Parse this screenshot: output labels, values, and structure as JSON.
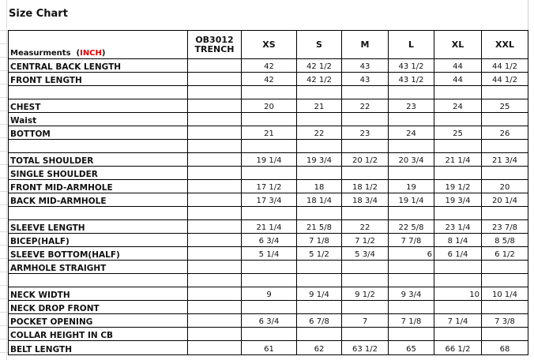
{
  "title": "Size Chart",
  "header": {
    "measurements_label": "Measurments",
    "unit_open": "(",
    "unit": "INCH",
    "unit_close": ")",
    "style_code": "OB3012",
    "style_name": "TRENCH",
    "sizes": [
      "XS",
      "S",
      "M",
      "L",
      "XL",
      "XXL"
    ]
  },
  "rows": [
    {
      "label": "CENTRAL BACK LENGTH",
      "values": [
        "42",
        "42 1/2",
        "43",
        "43 1/2",
        "44",
        "44 1/2"
      ]
    },
    {
      "label": "FRONT LENGTH",
      "values": [
        "42",
        "42 1/2",
        "43",
        "43 1/2",
        "44",
        "44 1/2"
      ]
    },
    {
      "label": "",
      "values": [
        "",
        "",
        "",
        "",
        "",
        ""
      ]
    },
    {
      "label": "CHEST",
      "values": [
        "20",
        "21",
        "22",
        "23",
        "24",
        "25"
      ]
    },
    {
      "label": "Waist",
      "values": [
        "",
        "",
        "",
        "",
        "",
        ""
      ]
    },
    {
      "label": "BOTTOM",
      "values": [
        "21",
        "22",
        "23",
        "24",
        "25",
        "26"
      ]
    },
    {
      "label": "",
      "values": [
        "",
        "",
        "",
        "",
        "",
        ""
      ]
    },
    {
      "label": "TOTAL SHOULDER",
      "values": [
        "19 1/4",
        "19 3/4",
        "20 1/2",
        "20 3/4",
        "21 1/4",
        "21 3/4"
      ]
    },
    {
      "label": "SINGLE SHOULDER",
      "values": [
        "",
        "",
        "",
        "",
        "",
        ""
      ]
    },
    {
      "label": "FRONT MID-ARMHOLE",
      "values": [
        "17 1/2",
        "18",
        "18 1/2",
        "19",
        "19 1/2",
        "20"
      ]
    },
    {
      "label": "BACK MID-ARMHOLE",
      "values": [
        "17 3/4",
        "18 1/4",
        "18 3/4",
        "19 1/4",
        "19 3/4",
        "20 1/4"
      ]
    },
    {
      "label": "",
      "values": [
        "",
        "",
        "",
        "",
        "",
        ""
      ]
    },
    {
      "label": "SLEEVE LENGTH",
      "values": [
        "21 1/4",
        "21 5/8",
        "22",
        "22 5/8",
        "23 1/4",
        "23 7/8"
      ]
    },
    {
      "label": "BICEP(HALF)",
      "values": [
        "6 3/4",
        "7 1/8",
        "7 1/2",
        "7 7/8",
        "8 1/4",
        "8 5/8"
      ]
    },
    {
      "label": "SLEEVE BOTTOM(HALF)",
      "values": [
        "5 1/4",
        "5 1/2",
        "5 3/4",
        "6",
        "6 1/4",
        "6 1/2"
      ]
    },
    {
      "label": "ARMHOLE STRAIGHT",
      "values": [
        "",
        "",
        "",
        "",
        "",
        ""
      ]
    },
    {
      "label": "",
      "values": [
        "",
        "",
        "",
        "",
        "",
        ""
      ]
    },
    {
      "label": "NECK WIDTH",
      "values": [
        "9",
        "9 1/4",
        "9 1/2",
        "9 3/4",
        "10",
        "10 1/4"
      ]
    },
    {
      "label": "NECK DROP FRONT",
      "values": [
        "",
        "",
        "",
        "",
        "",
        ""
      ]
    },
    {
      "label": "POCKET OPENING",
      "values": [
        "6 3/4",
        "6 7/8",
        "7",
        "7 1/8",
        "7 1/4",
        "7 3/8"
      ]
    },
    {
      "label": "COLLAR HEIGHT IN CB",
      "values": [
        "",
        "",
        "",
        "",
        "",
        ""
      ]
    },
    {
      "label": "BELT LENGTH",
      "values": [
        "61",
        "62",
        "63 1/2",
        "65",
        "66 1/2",
        "68"
      ]
    }
  ]
}
